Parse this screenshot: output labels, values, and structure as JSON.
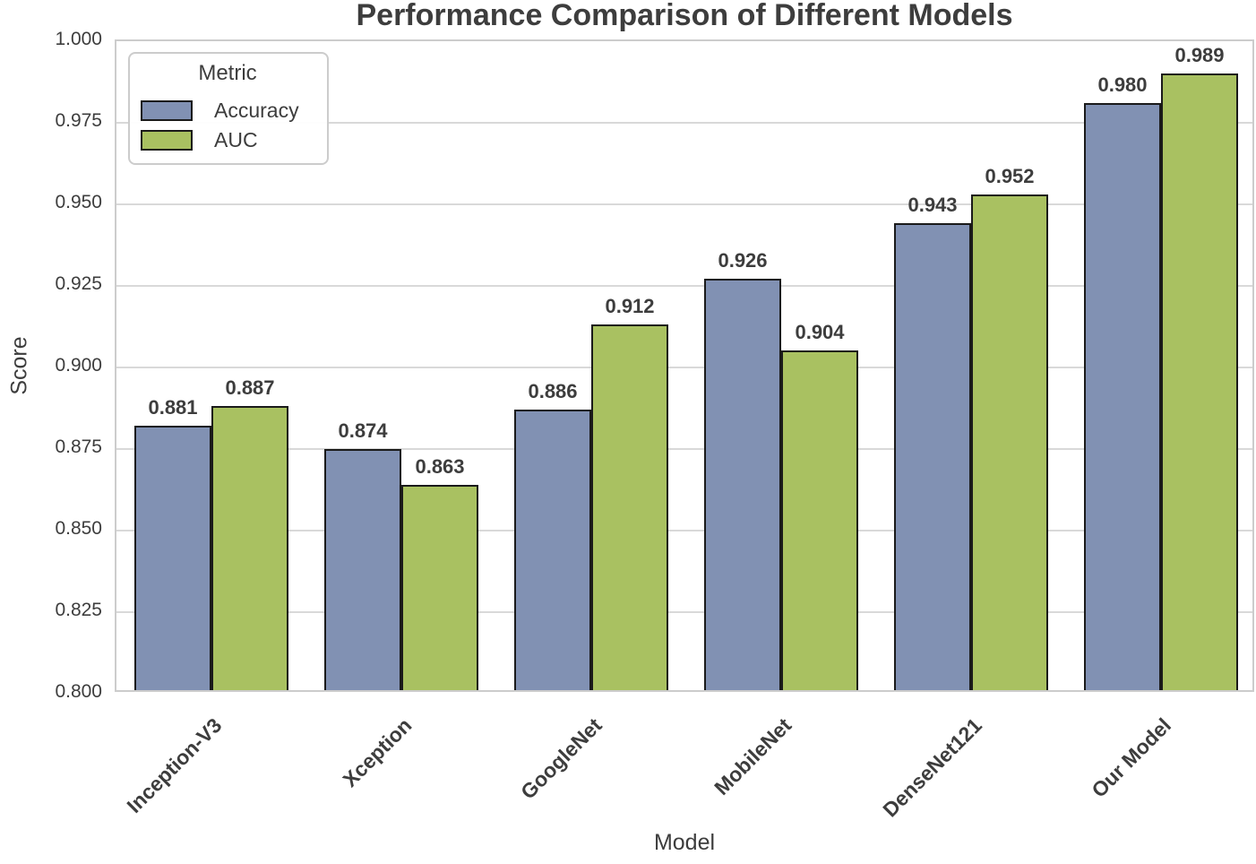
{
  "chart_data": {
    "type": "bar",
    "title": "Performance Comparison of Different Models",
    "xlabel": "Model",
    "ylabel": "Score",
    "categories": [
      "Inception-V3",
      "Xception",
      "GoogleNet",
      "MobileNet",
      "DenseNet121",
      "Our Model"
    ],
    "series": [
      {
        "name": "Accuracy",
        "color": "#8191B3",
        "values": [
          0.881,
          0.874,
          0.886,
          0.926,
          0.943,
          0.98
        ]
      },
      {
        "name": "AUC",
        "color": "#A9C161",
        "values": [
          0.887,
          0.863,
          0.912,
          0.904,
          0.952,
          0.989
        ]
      }
    ],
    "ylim": [
      0.8,
      1.0
    ],
    "yticks": [
      0.8,
      0.825,
      0.85,
      0.875,
      0.9,
      0.925,
      0.95,
      0.975,
      1.0
    ],
    "value_label_decimals": 3,
    "grid": true,
    "legend": {
      "title": "Metric",
      "position": "upper left"
    },
    "colors": {
      "bar_edge": "#1A1A1A",
      "grid": "#D9D9D9",
      "spine": "#CCCCCC",
      "text": "#3D3D3D"
    }
  }
}
